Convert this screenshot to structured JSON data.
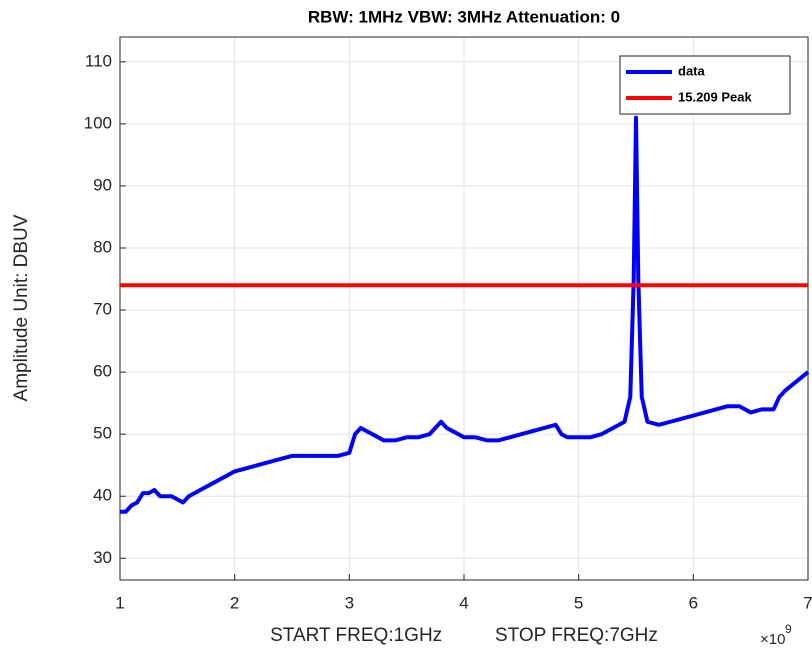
{
  "chart_data": {
    "type": "line",
    "title": "RBW: 1MHz   VBW: 3MHz  Attenuation: 0",
    "xlabel": "START FREQ:1GHz          STOP FREQ:7GHz",
    "ylabel": "Amplitude Unit: DBUV",
    "x_multiplier": {
      "base": "×10",
      "exponent": "9"
    },
    "xlim": [
      1,
      7
    ],
    "ylim": [
      26.5,
      114
    ],
    "xticks": [
      1,
      2,
      3,
      4,
      5,
      6,
      7
    ],
    "yticks": [
      30,
      40,
      50,
      60,
      70,
      80,
      90,
      100,
      110
    ],
    "grid": true,
    "legend": "top-right",
    "series": [
      {
        "name": "data",
        "color": "#0000ff",
        "x": [
          1.0,
          1.05,
          1.1,
          1.15,
          1.2,
          1.25,
          1.3,
          1.35,
          1.4,
          1.45,
          1.5,
          1.55,
          1.6,
          1.7,
          1.8,
          1.9,
          2.0,
          2.1,
          2.2,
          2.3,
          2.4,
          2.5,
          2.6,
          2.7,
          2.8,
          2.9,
          3.0,
          3.05,
          3.1,
          3.2,
          3.3,
          3.4,
          3.5,
          3.6,
          3.7,
          3.8,
          3.85,
          3.9,
          4.0,
          4.1,
          4.2,
          4.3,
          4.4,
          4.5,
          4.6,
          4.7,
          4.8,
          4.85,
          4.9,
          5.0,
          5.1,
          5.2,
          5.3,
          5.4,
          5.45,
          5.48,
          5.5,
          5.52,
          5.55,
          5.6,
          5.7,
          5.8,
          5.9,
          6.0,
          6.1,
          6.2,
          6.3,
          6.4,
          6.5,
          6.6,
          6.7,
          6.75,
          6.8,
          6.9,
          7.0
        ],
        "values": [
          37.5,
          37.5,
          38.5,
          39,
          40.5,
          40.5,
          41,
          40,
          40,
          40,
          39.5,
          39,
          40,
          41,
          42,
          43,
          44,
          44.5,
          45,
          45.5,
          46,
          46.5,
          46.5,
          46.5,
          46.5,
          46.5,
          47,
          50,
          51,
          50,
          49,
          49,
          49.5,
          49.5,
          50,
          52,
          51,
          50.5,
          49.5,
          49.5,
          49,
          49,
          49.5,
          50,
          50.5,
          51,
          51.5,
          50,
          49.5,
          49.5,
          49.5,
          50,
          51,
          52,
          56,
          75,
          101,
          75,
          56,
          52,
          51.5,
          52,
          52.5,
          53,
          53.5,
          54,
          54.5,
          54.5,
          53.5,
          54,
          54,
          56,
          57,
          58.5,
          60
        ]
      },
      {
        "name": "15.209 Peak",
        "color": "#ff0000",
        "x": [
          1,
          7
        ],
        "values": [
          74,
          74
        ]
      }
    ]
  }
}
